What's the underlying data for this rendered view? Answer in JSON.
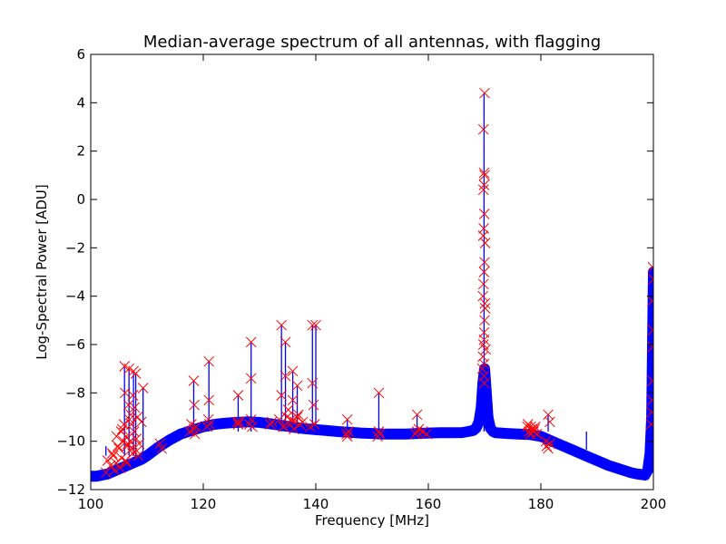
{
  "chart_data": {
    "type": "line",
    "title": "Median-average spectrum of all antennas, with flagging",
    "xlabel": "Frequency [MHz]",
    "ylabel": "Log-Spectral Power [ADU]",
    "xlim": [
      100,
      200
    ],
    "ylim": [
      -12,
      6
    ],
    "xticks": [
      100,
      120,
      140,
      160,
      180,
      200
    ],
    "yticks": [
      -12,
      -10,
      -8,
      -6,
      -4,
      -2,
      0,
      2,
      4,
      6
    ],
    "grid": false,
    "legend": "none",
    "series": [
      {
        "role": "spectrum",
        "color": "#0000ff",
        "style": "line",
        "x": [
          100,
          101,
          102,
          103,
          104,
          105,
          106,
          107,
          108,
          109,
          110,
          112,
          114,
          116,
          118,
          120,
          122,
          124,
          126,
          128,
          130,
          132,
          134,
          136,
          138,
          140,
          142,
          144,
          146,
          148,
          150,
          152,
          154,
          156,
          158,
          160,
          162,
          164,
          166,
          167,
          168,
          168.5,
          169,
          169.4,
          169.7,
          170,
          170.3,
          170.6,
          171,
          171.5,
          172,
          174,
          176,
          178,
          180,
          182,
          184,
          186,
          188,
          190,
          192,
          194,
          196,
          197,
          198,
          198.5,
          199,
          199.4,
          199.7,
          200
        ],
        "y": [
          -11.45,
          -11.45,
          -11.4,
          -11.35,
          -11.25,
          -11.15,
          -11.05,
          -10.95,
          -10.85,
          -10.75,
          -10.6,
          -10.25,
          -9.95,
          -9.7,
          -9.55,
          -9.4,
          -9.3,
          -9.25,
          -9.22,
          -9.2,
          -9.22,
          -9.28,
          -9.35,
          -9.42,
          -9.48,
          -9.52,
          -9.56,
          -9.6,
          -9.63,
          -9.66,
          -9.68,
          -9.7,
          -9.7,
          -9.7,
          -9.68,
          -9.66,
          -9.65,
          -9.65,
          -9.64,
          -9.6,
          -9.55,
          -9.45,
          -9.2,
          -8.6,
          -7.6,
          -7.0,
          -8.0,
          -9.0,
          -9.45,
          -9.6,
          -9.65,
          -9.68,
          -9.7,
          -9.72,
          -9.8,
          -10.0,
          -10.2,
          -10.4,
          -10.6,
          -10.8,
          -11.0,
          -11.15,
          -11.3,
          -11.35,
          -11.38,
          -11.4,
          -11.2,
          -10.5,
          -9.0,
          -3.0
        ]
      },
      {
        "role": "spikes",
        "color": "#0000ff",
        "style": "vlines",
        "x": [
          102.7,
          106.0,
          106.8,
          107.6,
          108.0,
          109.3,
          118.3,
          121.0,
          126.2,
          128.5,
          133.9,
          134.6,
          135.9,
          136.7,
          139.4,
          140.0,
          145.6,
          151.2,
          158.0,
          169.9,
          181.3,
          188.1
        ],
        "y": [
          -10.2,
          -6.9,
          -7.0,
          -7.1,
          -7.2,
          -7.8,
          -7.5,
          -6.7,
          -8.1,
          -5.9,
          -5.2,
          -5.9,
          -7.1,
          -7.7,
          -5.2,
          -5.2,
          -9.1,
          -8.0,
          -8.9,
          4.4,
          -8.9,
          -10.35
        ]
      },
      {
        "role": "flagged",
        "color": "#ff0000",
        "style": "x-markers",
        "x": [
          102.7,
          103.0,
          103.5,
          104.0,
          104.5,
          105.0,
          105.5,
          105.6,
          106.0,
          106.1,
          106.3,
          106.5,
          106.7,
          106.8,
          107.0,
          107.2,
          107.4,
          107.6,
          107.8,
          108.0,
          108.2,
          108.6,
          109.0,
          109.3,
          104.2,
          104.8,
          105.2,
          105.8,
          106.4,
          106.9,
          107.3,
          107.7,
          108.1,
          108.4,
          103.8,
          104.6,
          105.4,
          106.2,
          107.1,
          105.9,
          106.6,
          107.5,
          108.3,
          112.3,
          112.6,
          117.6,
          117.9,
          118.3,
          118.5,
          118.7,
          118.3,
          118.4,
          120.7,
          120.9,
          121.0,
          121.1,
          121.0,
          126.0,
          126.2,
          126.4,
          126.2,
          128.2,
          128.5,
          128.7,
          128.5,
          128.5,
          131.9,
          132.2,
          133.5,
          133.9,
          134.3,
          134.6,
          134.9,
          135.3,
          135.6,
          135.9,
          136.3,
          136.7,
          137.2,
          137.7,
          133.9,
          134.6,
          135.9,
          136.7,
          134.2,
          135.1,
          136.1,
          136.9,
          139.0,
          139.4,
          139.8,
          140.0,
          139.4,
          139.6,
          145.5,
          145.6,
          145.8,
          145.6,
          151.0,
          151.2,
          151.4,
          151.2,
          157.7,
          158.0,
          158.3,
          159.0,
          159.7,
          158.0,
          169.6,
          169.7,
          169.8,
          169.9,
          170.0,
          170.1,
          170.2,
          169.7,
          169.8,
          169.9,
          170.0,
          170.1,
          169.75,
          169.85,
          169.95,
          170.05,
          169.8,
          169.9,
          170.0,
          169.9,
          169.8,
          170.0,
          169.9,
          169.9,
          169.95,
          169.9,
          177.6,
          177.9,
          178.1,
          178.4,
          178.7,
          179.0,
          179.3,
          177.7,
          178.2,
          178.9,
          180.9,
          181.3,
          181.6,
          181.3,
          181.0,
          181.6,
          199.6,
          199.7,
          199.8,
          199.85,
          199.9,
          199.95,
          200.0,
          199.9,
          199.8
        ],
        "y": [
          -11.3,
          -10.8,
          -11.0,
          -10.6,
          -10.9,
          -10.3,
          -10.7,
          -9.5,
          -6.9,
          -8.0,
          -9.8,
          -10.2,
          -8.5,
          -7.0,
          -10.0,
          -9.3,
          -10.5,
          -7.1,
          -8.6,
          -7.2,
          -10.4,
          -10.1,
          -9.2,
          -7.8,
          -11.2,
          -10.2,
          -11.1,
          -10.0,
          -10.9,
          -9.1,
          -10.3,
          -9.6,
          -9.9,
          -10.6,
          -10.5,
          -9.8,
          -9.6,
          -10.8,
          -8.9,
          -9.3,
          -10.1,
          -8.1,
          -9.0,
          -10.1,
          -10.3,
          -9.6,
          -9.3,
          -9.5,
          -9.7,
          -9.4,
          -7.5,
          -8.5,
          -9.4,
          -9.1,
          -6.7,
          -9.3,
          -8.3,
          -9.2,
          -9.3,
          -9.2,
          -8.1,
          -9.3,
          -9.1,
          -9.4,
          -5.9,
          -7.4,
          -9.3,
          -9.2,
          -9.1,
          -5.2,
          -9.4,
          -5.9,
          -9.0,
          -9.3,
          -9.1,
          -7.1,
          -9.2,
          -9.0,
          -9.3,
          -9.2,
          -8.1,
          -7.3,
          -8.3,
          -7.7,
          -9.4,
          -8.7,
          -9.5,
          -8.9,
          -9.4,
          -5.2,
          -9.3,
          -5.2,
          -7.6,
          -8.5,
          -9.7,
          -9.1,
          -9.6,
          -9.8,
          -9.8,
          -8.0,
          -9.7,
          -9.6,
          -9.7,
          -8.9,
          -9.5,
          -9.6,
          -9.7,
          -9.6,
          -7.0,
          -6.5,
          -6.0,
          -5.5,
          -5.0,
          -4.5,
          -6.2,
          -4.0,
          -3.5,
          -3.0,
          -2.6,
          -1.8,
          -1.5,
          -1.2,
          -0.6,
          -4.3,
          0.4,
          0.6,
          1.0,
          1.1,
          2.9,
          4.4,
          -6.8,
          -7.3,
          -7.6,
          -5.8,
          -9.4,
          -9.6,
          -9.7,
          -9.5,
          -9.6,
          -9.4,
          -9.7,
          -9.3,
          -9.4,
          -9.5,
          -10.0,
          -8.9,
          -10.1,
          -10.3,
          -10.2,
          -9.2,
          -9.3,
          -8.8,
          -8.3,
          -7.5,
          -6.1,
          -5.4,
          -3.3,
          -2.8,
          -4.2
        ]
      }
    ]
  }
}
